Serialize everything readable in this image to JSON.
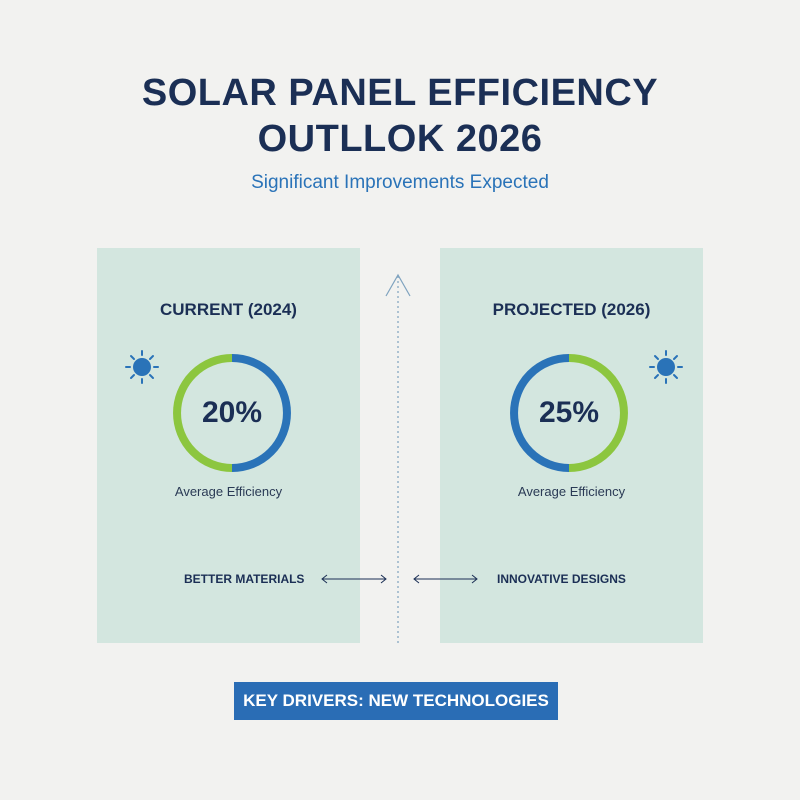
{
  "header": {
    "title_lines": [
      "SOLAR PANEL EFFICIENCY",
      "OUTLLOK 2026"
    ],
    "subtitle": "Significant Improvements Expected"
  },
  "panels": [
    {
      "heading": "CURRENT (2024)",
      "value": "20%",
      "caption": "Average Efficiency",
      "driver": "BETTER MATERIALS"
    },
    {
      "heading": "PROJECTED (2026)",
      "value": "25%",
      "caption": "Average Efficiency",
      "driver": "INNOVATIVE DESIGNS"
    }
  ],
  "footer": {
    "banner": "KEY DRIVERS: NEW TECHNOLOGIES"
  }
}
